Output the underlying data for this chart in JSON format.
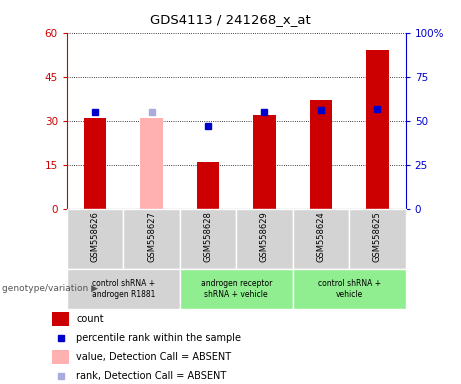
{
  "title": "GDS4113 / 241268_x_at",
  "samples": [
    "GSM558626",
    "GSM558627",
    "GSM558628",
    "GSM558629",
    "GSM558624",
    "GSM558625"
  ],
  "count_values": [
    31,
    null,
    16,
    32,
    37,
    54
  ],
  "count_absent_values": [
    null,
    31,
    null,
    null,
    null,
    null
  ],
  "percentile_values": [
    55,
    null,
    47,
    55,
    56,
    57
  ],
  "percentile_absent_values": [
    null,
    55,
    null,
    null,
    null,
    null
  ],
  "ylim_left": [
    0,
    60
  ],
  "ylim_right": [
    0,
    100
  ],
  "yticks_left": [
    0,
    15,
    30,
    45,
    60
  ],
  "ytick_labels_left": [
    "0",
    "15",
    "30",
    "45",
    "60"
  ],
  "yticks_right": [
    0,
    25,
    50,
    75,
    100
  ],
  "ytick_labels_right": [
    "0",
    "25",
    "50",
    "75",
    "100%"
  ],
  "group_labels": [
    "control shRNA +\nandrogen R1881",
    "androgen receptor\nshRNA + vehicle",
    "control shRNA +\nvehicle"
  ],
  "group_ranges": [
    [
      0,
      2
    ],
    [
      2,
      4
    ],
    [
      4,
      6
    ]
  ],
  "group_colors": [
    "#d3d3d3",
    "#90ee90",
    "#90ee90"
  ],
  "sample_bg_color": "#d3d3d3",
  "bar_color_red": "#cc0000",
  "bar_color_pink": "#ffb0b0",
  "dot_color_blue": "#0000cc",
  "dot_color_lightblue": "#aaaadd",
  "legend_items": [
    {
      "color": "#cc0000",
      "label": "count",
      "type": "rect"
    },
    {
      "color": "#0000cc",
      "label": "percentile rank within the sample",
      "type": "square"
    },
    {
      "color": "#ffb0b0",
      "label": "value, Detection Call = ABSENT",
      "type": "rect"
    },
    {
      "color": "#aaaadd",
      "label": "rank, Detection Call = ABSENT",
      "type": "square"
    }
  ],
  "xlabel_color": "#cc0000",
  "ylabel_right_color": "#0000cc",
  "genotype_label": "genotype/variation"
}
